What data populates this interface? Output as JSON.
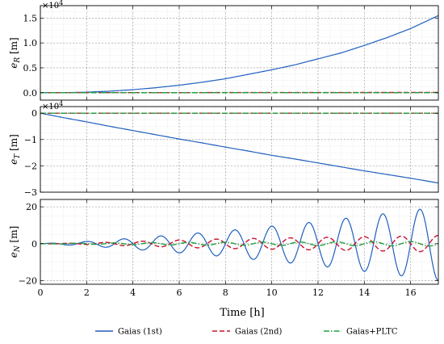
{
  "chart_data": {
    "type": "line",
    "xlabel": "Time [h]",
    "xlim": [
      0,
      17.2
    ],
    "xticks": [
      0,
      2,
      4,
      6,
      8,
      10,
      12,
      14,
      16
    ],
    "grid": true,
    "legend_placement": "bottom-center",
    "legend": [
      {
        "name": "Gaias (1st)",
        "color": "#1f5fbf",
        "dash": "solid"
      },
      {
        "name": "Gaias (2nd)",
        "color": "#c8102e",
        "dash": "dashed"
      },
      {
        "name": "Gaias+PLTC",
        "color": "#22a040",
        "dash": "dashdot"
      }
    ],
    "panels": [
      {
        "ylabel": "e_R [m]",
        "ylabel_main": "e",
        "ylabel_sub": "R",
        "ylabel_unit": " [m]",
        "exponent_label": "×10",
        "exponent_power": "4",
        "ylim": [
          -0.15,
          1.75
        ],
        "yticks": [
          0.0,
          0.5,
          1.0,
          1.5
        ],
        "ytick_labels": [
          "0.0",
          "0.5",
          "1.0",
          "1.5"
        ],
        "series": [
          {
            "name": "Gaias (1st)",
            "x": [
              0,
              1,
              2,
              3,
              4,
              5,
              6,
              7,
              8,
              9,
              10,
              11,
              12,
              13,
              14,
              15,
              16,
              17.2
            ],
            "y": [
              0,
              0.001,
              0.01,
              0.03,
              0.06,
              0.1,
              0.15,
              0.21,
              0.28,
              0.37,
              0.46,
              0.56,
              0.68,
              0.8,
              0.95,
              1.11,
              1.29,
              1.55
            ]
          },
          {
            "name": "Gaias (2nd)",
            "x": [
              0,
              17.2
            ],
            "y": [
              0,
              0.005
            ]
          },
          {
            "name": "Gaias+PLTC",
            "x": [
              0,
              17.2
            ],
            "y": [
              0,
              0
            ]
          }
        ]
      },
      {
        "ylabel": "e_T [m]",
        "ylabel_main": "e",
        "ylabel_sub": "T",
        "ylabel_unit": " [m]",
        "exponent_label": "×10",
        "exponent_power": "4",
        "ylim": [
          -3.0,
          0.25
        ],
        "yticks": [
          0,
          -1,
          -2,
          -3
        ],
        "ytick_labels": [
          "0",
          "−1",
          "−2",
          "−3"
        ],
        "series": [
          {
            "name": "Gaias (1st)",
            "x": [
              0,
              1,
              2,
              3,
              4,
              5,
              6,
              7,
              8,
              9,
              10,
              11,
              12,
              13,
              14,
              15,
              16,
              17.2
            ],
            "y": [
              0,
              -0.17,
              -0.33,
              -0.5,
              -0.66,
              -0.82,
              -0.98,
              -1.13,
              -1.29,
              -1.44,
              -1.6,
              -1.74,
              -1.89,
              -2.04,
              -2.19,
              -2.33,
              -2.47,
              -2.65
            ]
          },
          {
            "name": "Gaias (2nd)",
            "x": [
              0,
              17.2
            ],
            "y": [
              0,
              0
            ]
          },
          {
            "name": "Gaias+PLTC",
            "x": [
              0,
              17.2
            ],
            "y": [
              0,
              0
            ]
          }
        ]
      },
      {
        "ylabel": "e_N [m]",
        "ylabel_main": "e",
        "ylabel_sub": "N",
        "ylabel_unit": " [m]",
        "ylim": [
          -22,
          24
        ],
        "yticks": [
          20,
          0,
          -20
        ],
        "ytick_labels": [
          "20",
          "0",
          "−20"
        ],
        "oscillation_period_h": 1.6,
        "series": [
          {
            "name": "Gaias (1st)",
            "envelope_t": [
              0,
              2,
              4,
              6,
              8,
              10,
              12,
              14,
              16,
              17.2
            ],
            "envelope_amp": [
              0,
              1.2,
              3,
              5,
              7,
              9.5,
              12,
              15,
              18,
              20
            ]
          },
          {
            "name": "Gaias (2nd)",
            "envelope_t": [
              0,
              2,
              4,
              6,
              8,
              10,
              12,
              14,
              16,
              17.2
            ],
            "envelope_amp": [
              0,
              0.4,
              1.2,
              2.0,
              2.6,
              3.0,
              3.4,
              3.8,
              4.2,
              4.5
            ]
          },
          {
            "name": "Gaias+PLTC",
            "envelope_t": [
              0,
              2,
              4,
              6,
              8,
              10,
              12,
              14,
              16,
              17.2
            ],
            "envelope_amp": [
              0,
              0.3,
              0.5,
              0.7,
              0.8,
              0.9,
              1.0,
              1.1,
              1.2,
              1.3
            ]
          }
        ]
      }
    ]
  }
}
